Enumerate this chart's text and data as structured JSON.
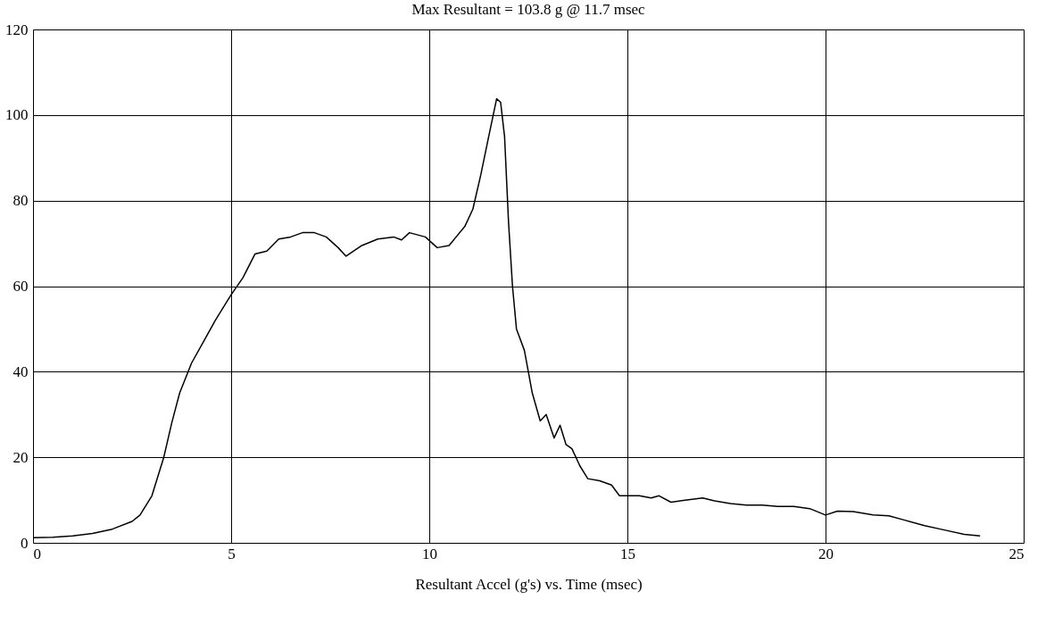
{
  "chart_data": {
    "type": "line",
    "title": "Max Resultant = 103.8 g @  11.7 msec",
    "xlabel": "Resultant Accel (g's) vs. Time (msec)",
    "xlim": [
      0,
      25
    ],
    "xticks": [
      0,
      5,
      10,
      15,
      20,
      25
    ],
    "ylim": [
      0,
      120
    ],
    "yticks": [
      0,
      20,
      40,
      60,
      80,
      100,
      120
    ],
    "grid": true,
    "line_style": "solid",
    "marker": "none",
    "series": [
      {
        "color": "#000000",
        "x": [
          0,
          0.5,
          1,
          1.5,
          2,
          2.5,
          2.7,
          3.0,
          3.3,
          3.5,
          3.7,
          4.0,
          4.3,
          4.6,
          5.0,
          5.3,
          5.6,
          5.9,
          6.2,
          6.5,
          6.8,
          7.1,
          7.4,
          7.7,
          7.9,
          8.3,
          8.7,
          9.1,
          9.3,
          9.5,
          9.9,
          10.2,
          10.5,
          10.9,
          11.1,
          11.3,
          11.5,
          11.7,
          11.8,
          11.9,
          12.0,
          12.1,
          12.2,
          12.4,
          12.6,
          12.8,
          12.95,
          13.15,
          13.3,
          13.45,
          13.6,
          13.8,
          14.0,
          14.3,
          14.6,
          14.8,
          15.3,
          15.6,
          15.8,
          16.1,
          16.5,
          16.9,
          17.2,
          17.6,
          18,
          18.4,
          18.8,
          19.2,
          19.6,
          20,
          20.3,
          20.7,
          21.2,
          21.6,
          22,
          22.5,
          23,
          23.5,
          23.9
        ],
        "values": [
          1.2,
          1.3,
          1.6,
          2.2,
          3.2,
          5.0,
          6.5,
          11,
          20,
          28,
          35,
          42,
          47,
          52,
          58,
          62,
          67.5,
          68.2,
          71,
          71.5,
          72.5,
          72.5,
          71.5,
          69,
          67,
          69.5,
          71,
          71.5,
          70.8,
          72.5,
          71.5,
          69,
          69.5,
          74,
          78,
          86,
          95,
          103.8,
          103,
          95,
          75,
          60,
          50,
          45,
          35,
          28.5,
          30,
          24.5,
          27.5,
          23,
          22,
          18,
          15,
          14.5,
          13.5,
          11,
          11,
          10.5,
          11,
          9.5,
          10,
          10.5,
          9.8,
          9.2,
          8.8,
          8.8,
          8.5,
          8.5,
          8,
          6.5,
          7.4,
          7.3,
          6.5,
          6.3,
          5.3,
          4,
          3,
          2,
          1.6
        ]
      }
    ]
  }
}
